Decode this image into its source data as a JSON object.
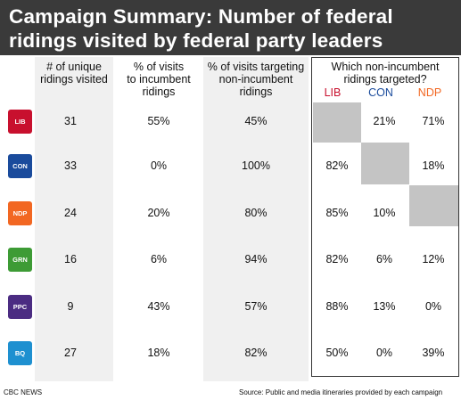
{
  "title": {
    "line1": "Campaign Summary: Number of federal",
    "line2": "ridings visited by federal party leaders"
  },
  "columns": {
    "unique_line1": "# of unique",
    "unique_line2": "ridings visited",
    "incumbent_line1": "% of visits",
    "incumbent_line2": "to incumbent",
    "incumbent_line3": "ridings",
    "nonincumbent_line1": "% of visits targeting",
    "nonincumbent_line2": "non-incumbent",
    "nonincumbent_line3": "ridings",
    "targeted_line1": "Which non-incumbent",
    "targeted_line2": "ridings targeted?",
    "lib": "LIB",
    "con": "CON",
    "ndp": "NDP"
  },
  "colors": {
    "lib": "#c8102e",
    "con": "#1a4b9c",
    "ndp": "#f26722",
    "grn": "#3d9b35",
    "ppc": "#4b2c82",
    "bq": "#1e90d0"
  },
  "rows": [
    {
      "party": "LIB",
      "unique": "31",
      "incumbent": "55%",
      "nonincumbent": "45%",
      "lib": "",
      "con": "21%",
      "ndp": "71%"
    },
    {
      "party": "CON",
      "unique": "33",
      "incumbent": "0%",
      "nonincumbent": "100%",
      "lib": "82%",
      "con": "",
      "ndp": "18%"
    },
    {
      "party": "NDP",
      "unique": "24",
      "incumbent": "20%",
      "nonincumbent": "80%",
      "lib": "85%",
      "con": "10%",
      "ndp": ""
    },
    {
      "party": "GRN",
      "unique": "16",
      "incumbent": "6%",
      "nonincumbent": "94%",
      "lib": "82%",
      "con": "6%",
      "ndp": "12%"
    },
    {
      "party": "PPC",
      "unique": "9",
      "incumbent": "43%",
      "nonincumbent": "57%",
      "lib": "88%",
      "con": "13%",
      "ndp": "0%"
    },
    {
      "party": "BQ",
      "unique": "27",
      "incumbent": "18%",
      "nonincumbent": "82%",
      "lib": "50%",
      "con": "0%",
      "ndp": "39%"
    }
  ],
  "footer": {
    "left": "CBC NEWS",
    "right": "Source:  Public and media itineraries provided by each campaign"
  }
}
